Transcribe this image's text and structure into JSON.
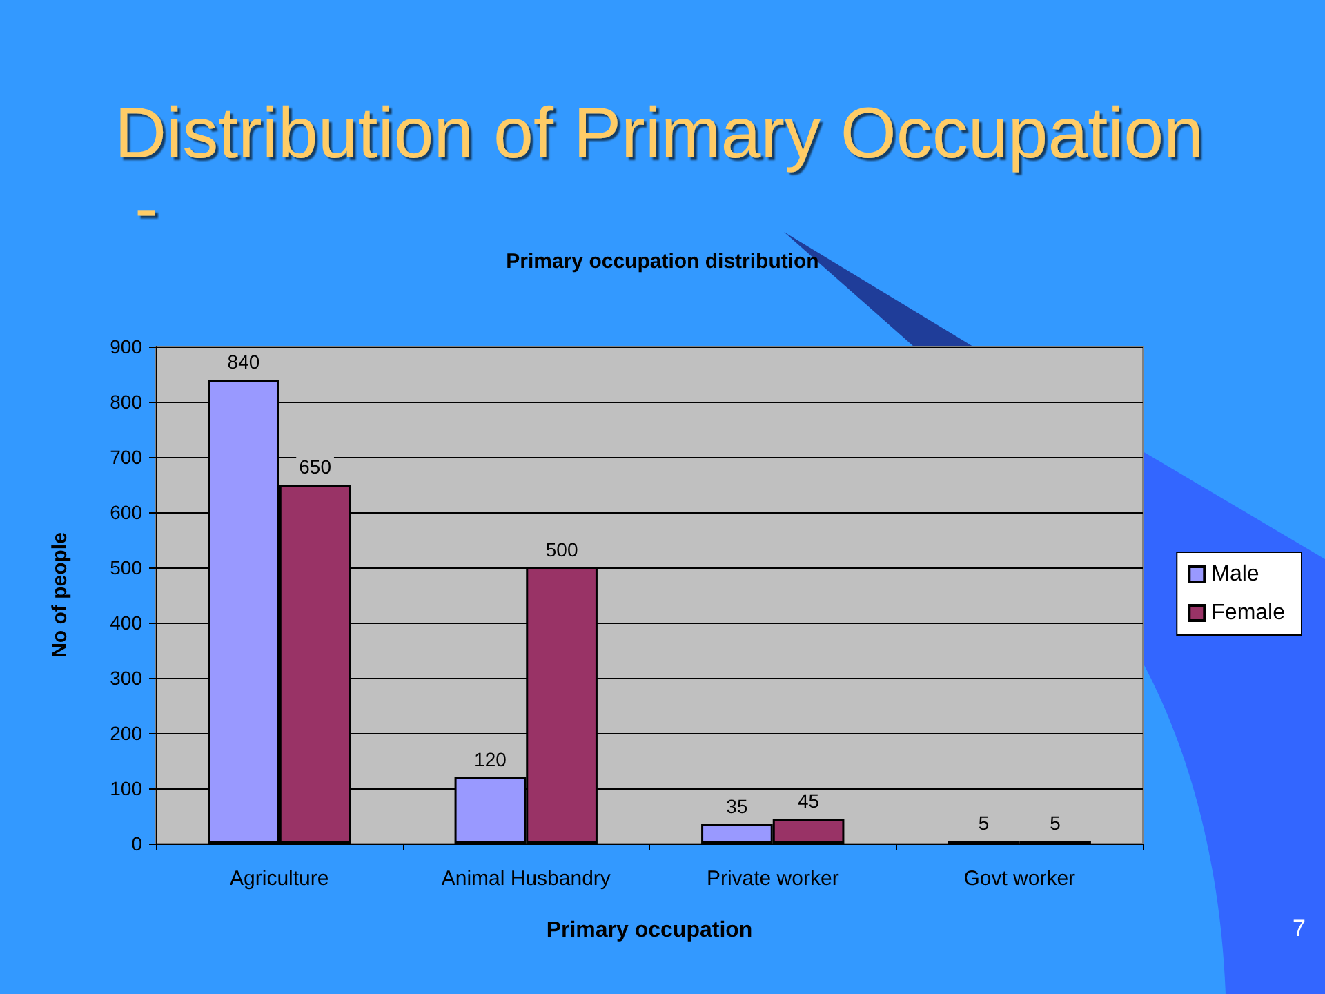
{
  "chart_data": {
    "type": "bar",
    "title": "Distribution of Primary Occupation -",
    "subtitle": "Primary occupation distribution",
    "xlabel": "Primary occupation",
    "ylabel": "No of people",
    "categories": [
      "Agriculture",
      "Animal Husbandry",
      "Private worker",
      "Govt worker"
    ],
    "series": [
      {
        "name": "Male",
        "color": "#9999ff",
        "values": [
          840,
          120,
          35,
          5
        ]
      },
      {
        "name": "Female",
        "color": "#993366",
        "values": [
          650,
          500,
          45,
          5
        ]
      }
    ],
    "ylim": [
      0,
      900
    ],
    "yticks": [
      0,
      100,
      200,
      300,
      400,
      500,
      600,
      700,
      800,
      900
    ],
    "grid": "y",
    "legend": "right",
    "data_labels": true,
    "annotations": [
      "7"
    ]
  }
}
